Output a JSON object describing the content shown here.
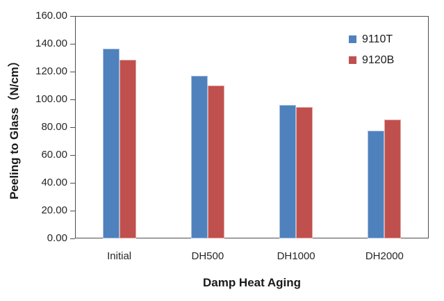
{
  "chart_data": {
    "type": "bar",
    "title": "",
    "xlabel": "Damp Heat Aging",
    "ylabel": "Peeling to Glass（N/cm）",
    "categories": [
      "Initial",
      "DH500",
      "DH1000",
      "DH2000"
    ],
    "series": [
      {
        "name": "9110T",
        "color": "#4F81BD",
        "values": [
          136.5,
          117.0,
          96.0,
          77.5
        ]
      },
      {
        "name": "9120B",
        "color": "#C0504D",
        "values": [
          128.5,
          110.0,
          94.5,
          85.5
        ]
      }
    ],
    "ylim": [
      0,
      160
    ],
    "yticks": [
      {
        "label": "0.00",
        "value": 0
      },
      {
        "label": "20.00",
        "value": 20
      },
      {
        "label": "40.00",
        "value": 40
      },
      {
        "label": "60.00",
        "value": 60
      },
      {
        "label": "80.00",
        "value": 80
      },
      {
        "label": "100.00",
        "value": 100
      },
      {
        "label": "120.00",
        "value": 120
      },
      {
        "label": "140.00",
        "value": 140
      },
      {
        "label": "160.00",
        "value": 160
      }
    ],
    "legend_position": "top-right-inside",
    "grid": false
  },
  "colors": {
    "series_blue": "#4F81BD",
    "series_red": "#C0504D",
    "axis_line": "#4d4d4d",
    "text": "#262626",
    "background": "#FFFFFF"
  }
}
